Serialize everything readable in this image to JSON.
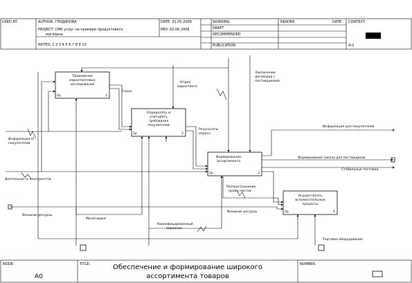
{
  "header": {
    "used_at": "USED AT:",
    "author": "AUTHOR:  ГРУДИНОВА",
    "project": "PROJECT:  СМК услуг на примере продуктового",
    "project2": "магазина",
    "date": "DATE:   31.05.2006",
    "rev": "REV:     02.06.2006",
    "notes": "NOTES:  1  2  3  4  5  6  7  8  9  10",
    "working": "WORKING",
    "draft": "DRAFT",
    "recommended": "RECOMMENDED",
    "publication": "PUBLICATION",
    "reader": "READER",
    "reader_date": "DATE",
    "context": "CONTEXT:",
    "context_node": "A-0"
  },
  "boxes": [
    {
      "lines": [
        "Проведение",
        "маркетинговых",
        "исследований"
      ],
      "id": "2р",
      "num": "1"
    },
    {
      "lines": [
        "Определять и",
        "учитывать",
        "требования",
        "покупателей"
      ],
      "id": "2р",
      "num": "2"
    },
    {
      "lines": [
        "Формирование",
        "ассортимента"
      ],
      "id": "2р",
      "num": "3"
    },
    {
      "lines": [
        "Осуществлять",
        "вспомогательные",
        "процессы"
      ],
      "id": "2р",
      "num": "4"
    }
  ],
  "arrows": {
    "spros": "Спрос",
    "otdel": [
      "Отдел",
      "маркетинга"
    ],
    "zakl": [
      "Заключение",
      "договоров с",
      "поставщиками"
    ],
    "rezult": [
      "Результаты",
      "опроса"
    ],
    "info_ot": [
      "Информация от",
      "покупателей"
    ],
    "info_dlya": "Информация для покупателей",
    "formir": "Формирование заказа для поставщиков",
    "stabil": "Стабильные поставки",
    "deyat": "Деятельность конкурентов",
    "raspr": [
      "Распространение",
      "прайс-листов"
    ],
    "vnesh_r": "Внешние ресурсы",
    "vnesh_l": "Внешние ресурсы",
    "monit": "Мониторинг",
    "kval": [
      "Квалифицированный",
      "персонал"
    ],
    "torg": "Торговое оборудование"
  },
  "footer": {
    "node_label": "NODE:",
    "node": "A0",
    "title_label": "TITLE:",
    "title": [
      "Обеспечение и формирование широкого",
      "ассортимента товаров"
    ],
    "number_label": "NUMBER:"
  }
}
